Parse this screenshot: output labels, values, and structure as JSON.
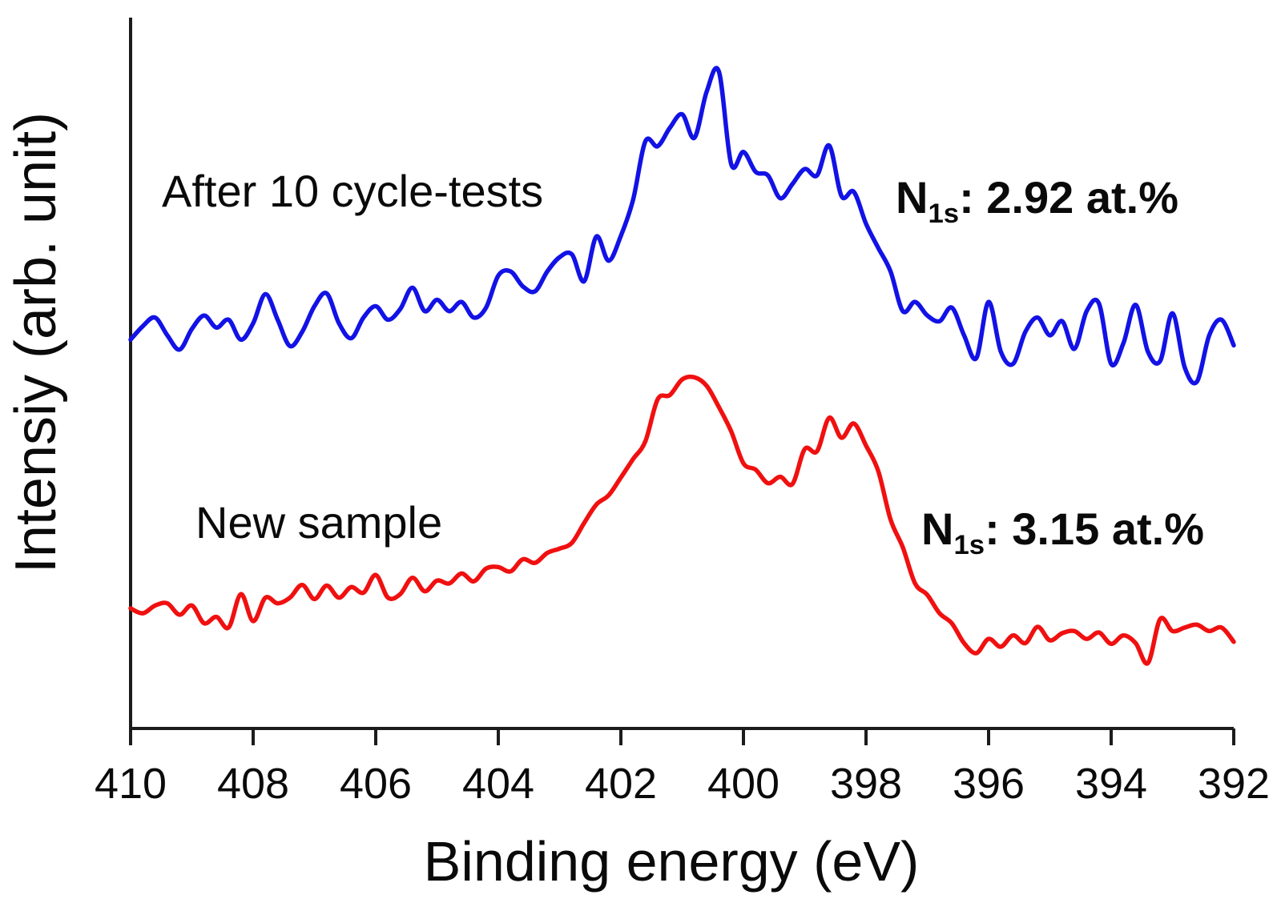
{
  "chart_data": {
    "type": "line",
    "description": "XPS N 1s spectra comparison, two stacked noisy curves",
    "xlabel": "Binding energy (eV)",
    "ylabel": "Intensiy (arb. unit)",
    "grid": false,
    "legend": "inline text labels, no legend box",
    "x_axis": {
      "label": "Binding energy (eV)",
      "min": 392,
      "max": 410,
      "reversed": true,
      "ticks": [
        410,
        408,
        406,
        404,
        402,
        400,
        398,
        396,
        394,
        392
      ]
    },
    "y_axis": {
      "label": "Intensiy (arb. unit)",
      "range": [
        0,
        100
      ],
      "tick_labels_shown": false
    },
    "x": [
      410.0,
      409.8,
      409.6,
      409.4,
      409.2,
      409.0,
      408.8,
      408.6,
      408.4,
      408.2,
      408.0,
      407.8,
      407.6,
      407.4,
      407.2,
      407.0,
      406.8,
      406.6,
      406.4,
      406.2,
      406.0,
      405.8,
      405.6,
      405.4,
      405.2,
      405.0,
      404.8,
      404.6,
      404.4,
      404.2,
      404.0,
      403.8,
      403.6,
      403.4,
      403.2,
      403.0,
      402.8,
      402.6,
      402.4,
      402.2,
      402.0,
      401.8,
      401.6,
      401.4,
      401.2,
      401.0,
      400.8,
      400.6,
      400.4,
      400.2,
      400.0,
      399.8,
      399.6,
      399.4,
      399.2,
      399.0,
      398.8,
      398.6,
      398.4,
      398.2,
      398.0,
      397.8,
      397.6,
      397.4,
      397.2,
      397.0,
      396.8,
      396.6,
      396.4,
      396.2,
      396.0,
      395.8,
      395.6,
      395.4,
      395.2,
      395.0,
      394.8,
      394.6,
      394.4,
      394.2,
      394.0,
      393.8,
      393.6,
      393.4,
      393.2,
      393.0,
      392.8,
      392.6,
      392.4,
      392.2,
      392.0
    ],
    "series": [
      {
        "name": "After 10 cycle-tests",
        "label_text": "After 10 cycle-tests",
        "color": "#1212e6",
        "annotation": {
          "element": "N",
          "subscript": "1s",
          "text": ": 2.92 at.%"
        },
        "peak_positions_eV": [
          400.5,
          398.6
        ],
        "values": [
          54.7,
          56.6,
          57.8,
          55.3,
          53.3,
          56.2,
          58.1,
          56.4,
          57.5,
          54.7,
          57.0,
          61.1,
          57.5,
          53.8,
          55.8,
          59.4,
          61.2,
          57.0,
          54.9,
          57.8,
          59.4,
          57.5,
          59.0,
          62.0,
          58.7,
          60.3,
          58.7,
          60.0,
          57.8,
          59.2,
          63.7,
          64.3,
          62.2,
          61.5,
          64.3,
          66.3,
          66.7,
          62.9,
          69.2,
          65.8,
          69.3,
          74.4,
          82.6,
          81.9,
          84.5,
          86.4,
          83.1,
          89.6,
          92.4,
          79.4,
          81.1,
          78.3,
          77.8,
          74.6,
          76.6,
          78.7,
          77.8,
          82.0,
          74.9,
          75.5,
          71.0,
          67.6,
          64.3,
          58.7,
          60.0,
          58.1,
          57.3,
          59.2,
          55.3,
          52.1,
          60.0,
          53.0,
          51.3,
          55.8,
          57.8,
          55.3,
          57.3,
          53.4,
          58.7,
          59.8,
          51.3,
          54.2,
          59.6,
          53.0,
          51.7,
          58.4,
          50.8,
          48.8,
          55.3,
          57.5,
          53.9
        ]
      },
      {
        "name": "New sample",
        "label_text": "New sample",
        "color": "#f01010",
        "annotation": {
          "element": "N",
          "subscript": "1s",
          "text": ": 3.15 at.%"
        },
        "peak_positions_eV": [
          400.9,
          398.5
        ],
        "values": [
          16.9,
          16.2,
          17.3,
          17.6,
          16.0,
          17.3,
          14.8,
          15.7,
          14.2,
          18.9,
          15.1,
          18.4,
          17.6,
          18.4,
          20.2,
          18.2,
          20.1,
          18.4,
          19.9,
          19.1,
          21.6,
          18.4,
          18.9,
          21.2,
          19.3,
          20.8,
          20.4,
          21.8,
          20.7,
          22.5,
          22.7,
          22.1,
          23.8,
          23.3,
          24.7,
          25.3,
          26.1,
          28.9,
          31.5,
          32.8,
          35.3,
          37.9,
          40.4,
          46.3,
          46.9,
          49.1,
          49.4,
          48.2,
          45.2,
          41.8,
          37.3,
          36.4,
          34.5,
          35.4,
          34.4,
          39.3,
          39.0,
          43.7,
          40.9,
          42.9,
          39.8,
          36.2,
          29.4,
          25.5,
          20.4,
          18.8,
          16.2,
          14.8,
          12.0,
          10.6,
          12.6,
          11.5,
          13.1,
          12.0,
          14.3,
          12.4,
          13.4,
          13.7,
          12.6,
          13.5,
          11.9,
          13.1,
          12.0,
          9.2,
          15.4,
          13.7,
          14.2,
          14.6,
          13.7,
          14.2,
          12.2
        ]
      }
    ],
    "axis_color": "#1c1c1c"
  }
}
